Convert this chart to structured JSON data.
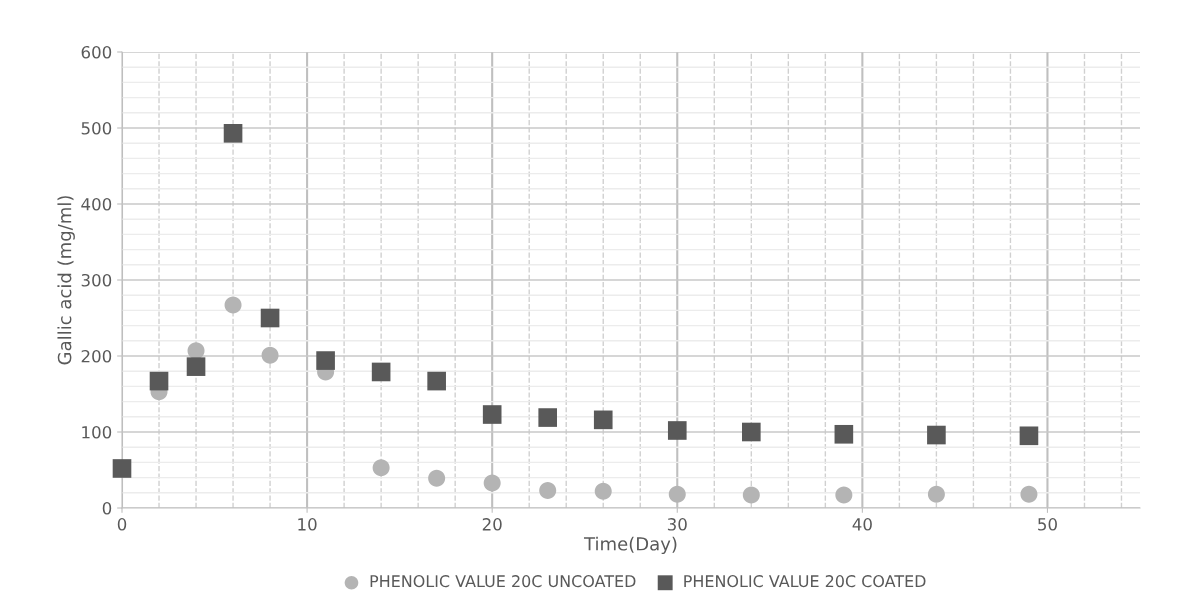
{
  "chart_data": {
    "type": "scatter",
    "xlabel": "Time(Day)",
    "ylabel": "Gallic acid (mg/ml)",
    "x": [
      0,
      2,
      4,
      6,
      8,
      11,
      14,
      17,
      20,
      23,
      26,
      30,
      34,
      39,
      44,
      49
    ],
    "series": [
      {
        "name": "PHENOLIC VALUE 20C UNCOATED",
        "color": "#b4b4b4",
        "marker": "circle",
        "values": [
          null,
          153,
          207,
          267,
          201,
          179,
          53,
          39,
          33,
          23,
          22,
          18,
          17,
          17,
          18,
          18
        ]
      },
      {
        "name": "PHENOLIC VALUE 20C COATED",
        "color": "#595959",
        "marker": "square",
        "values": [
          52,
          167,
          186,
          493,
          250,
          194,
          179,
          167,
          123,
          119,
          116,
          102,
          100,
          97,
          96,
          95
        ]
      }
    ],
    "xlim": [
      0,
      55
    ],
    "xticks": [
      0,
      10,
      20,
      30,
      40,
      50
    ],
    "ylim": [
      0,
      600
    ],
    "yticks": [
      0,
      100,
      200,
      300,
      400,
      500,
      600
    ],
    "grid": true,
    "legend": "bottom"
  }
}
